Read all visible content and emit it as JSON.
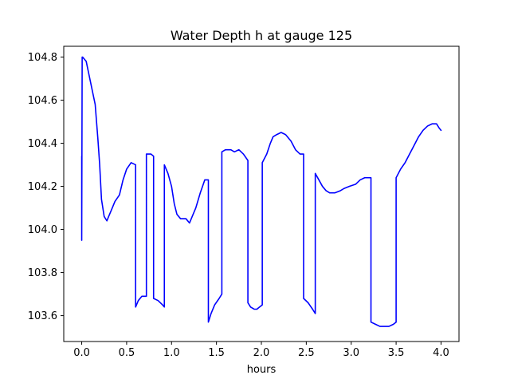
{
  "chart_data": {
    "type": "line",
    "title": "Water Depth h at gauge 125",
    "xlabel": "hours",
    "ylabel": "",
    "xlim": [
      -0.2,
      4.2
    ],
    "ylim": [
      103.48,
      104.85
    ],
    "xticks": [
      0.0,
      0.5,
      1.0,
      1.5,
      2.0,
      2.5,
      3.0,
      3.5,
      4.0
    ],
    "xtick_labels": [
      "0.0",
      "0.5",
      "1.0",
      "1.5",
      "2.0",
      "2.5",
      "3.0",
      "3.5",
      "4.0"
    ],
    "yticks": [
      103.6,
      103.8,
      104.0,
      104.2,
      104.4,
      104.6,
      104.8
    ],
    "ytick_labels": [
      "103.6",
      "103.8",
      "104.0",
      "104.2",
      "104.4",
      "104.6",
      "104.8"
    ],
    "grid": false,
    "series": [
      {
        "color": "#0000ff",
        "x": [
          0.0,
          0.0,
          0.0,
          0.005,
          0.01,
          0.05,
          0.1,
          0.15,
          0.18,
          0.2,
          0.22,
          0.25,
          0.28,
          0.3,
          0.33,
          0.37,
          0.42,
          0.46,
          0.5,
          0.55,
          0.6,
          0.6,
          0.63,
          0.67,
          0.72,
          0.72,
          0.77,
          0.8,
          0.8,
          0.85,
          0.9,
          0.92,
          0.92,
          0.96,
          1.0,
          1.03,
          1.06,
          1.1,
          1.12,
          1.16,
          1.2,
          1.23,
          1.27,
          1.32,
          1.37,
          1.41,
          1.41,
          1.44,
          1.48,
          1.53,
          1.56,
          1.56,
          1.6,
          1.63,
          1.66,
          1.7,
          1.75,
          1.8,
          1.85,
          1.85,
          1.88,
          1.92,
          1.95,
          1.98,
          2.01,
          2.01,
          2.06,
          2.1,
          2.13,
          2.17,
          2.22,
          2.27,
          2.33,
          2.38,
          2.43,
          2.47,
          2.47,
          2.52,
          2.57,
          2.6,
          2.6,
          2.64,
          2.68,
          2.72,
          2.76,
          2.82,
          2.88,
          2.92,
          2.98,
          3.05,
          3.1,
          3.15,
          3.2,
          3.22,
          3.22,
          3.27,
          3.32,
          3.37,
          3.42,
          3.47,
          3.5,
          3.5,
          3.55,
          3.6,
          3.65,
          3.7,
          3.75,
          3.8,
          3.85,
          3.9,
          3.95,
          3.98,
          4.0
        ],
        "y": [
          104.14,
          104.34,
          103.95,
          104.8,
          104.8,
          104.78,
          104.68,
          104.58,
          104.42,
          104.3,
          104.14,
          104.06,
          104.04,
          104.06,
          104.09,
          104.13,
          104.16,
          104.23,
          104.28,
          104.31,
          104.3,
          103.64,
          103.67,
          103.69,
          103.69,
          104.35,
          104.35,
          104.34,
          103.68,
          103.67,
          103.65,
          103.64,
          104.3,
          104.26,
          104.2,
          104.12,
          104.07,
          104.05,
          104.05,
          104.05,
          104.03,
          104.06,
          104.1,
          104.17,
          104.23,
          104.23,
          103.57,
          103.61,
          103.65,
          103.68,
          103.7,
          104.36,
          104.37,
          104.37,
          104.37,
          104.36,
          104.37,
          104.35,
          104.32,
          103.66,
          103.64,
          103.63,
          103.63,
          103.64,
          103.65,
          104.31,
          104.35,
          104.4,
          104.43,
          104.44,
          104.45,
          104.44,
          104.41,
          104.37,
          104.35,
          104.35,
          103.68,
          103.66,
          103.63,
          103.61,
          104.26,
          104.23,
          104.2,
          104.18,
          104.17,
          104.17,
          104.18,
          104.19,
          104.2,
          104.21,
          104.23,
          104.24,
          104.24,
          104.24,
          103.57,
          103.56,
          103.55,
          103.55,
          103.55,
          103.56,
          103.57,
          104.24,
          104.28,
          104.31,
          104.35,
          104.39,
          104.43,
          104.46,
          104.48,
          104.49,
          104.49,
          104.47,
          104.46
        ]
      }
    ]
  }
}
